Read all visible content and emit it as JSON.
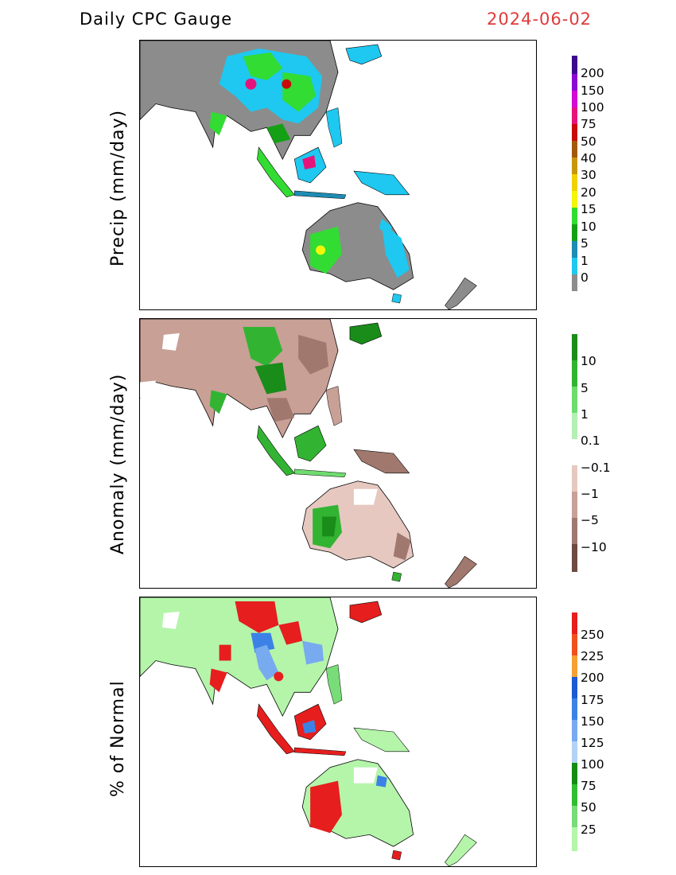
{
  "header": {
    "title": "Daily CPC Gauge",
    "date": "2024-06-02"
  },
  "panels": [
    {
      "ylabel": "Precip (mm/day)",
      "colorbar": {
        "labels": [
          "200",
          "150",
          "100",
          "75",
          "50",
          "40",
          "30",
          "20",
          "15",
          "10",
          "5",
          "1",
          "0"
        ],
        "colors": [
          "#3c0a8a",
          "#8a0ad2",
          "#d20ad2",
          "#e6147a",
          "#c80a0a",
          "#a05a0a",
          "#c8960a",
          "#f0d200",
          "#f5f50a",
          "#32dc32",
          "#14a014",
          "#1e8cb4",
          "#1ec8f0",
          "#8c8c8c"
        ]
      }
    },
    {
      "ylabel": "Anomaly (mm/day)",
      "colorbar": {
        "labels": [
          "10",
          "5",
          "1",
          "0.1",
          "−0.1",
          "−1",
          "−5",
          "−10"
        ],
        "colors": [
          "#1a8c1a",
          "#32b432",
          "#6edc6e",
          "#b4f0b4",
          "#ffffff",
          "#e6c8c0",
          "#c8a096",
          "#a0786e",
          "#6e4a40"
        ]
      }
    },
    {
      "ylabel": "% of Normal",
      "colorbar": {
        "labels": [
          "250",
          "225",
          "200",
          "175",
          "150",
          "125",
          "100",
          "75",
          "50",
          "25"
        ],
        "colors": [
          "#e61e1e",
          "#f0501e",
          "#f5a032",
          "#1e5ad2",
          "#3c82e6",
          "#78aaf0",
          "#b4d2f5",
          "#148c14",
          "#32be32",
          "#78dc78",
          "#b4f5aa"
        ]
      }
    }
  ]
}
